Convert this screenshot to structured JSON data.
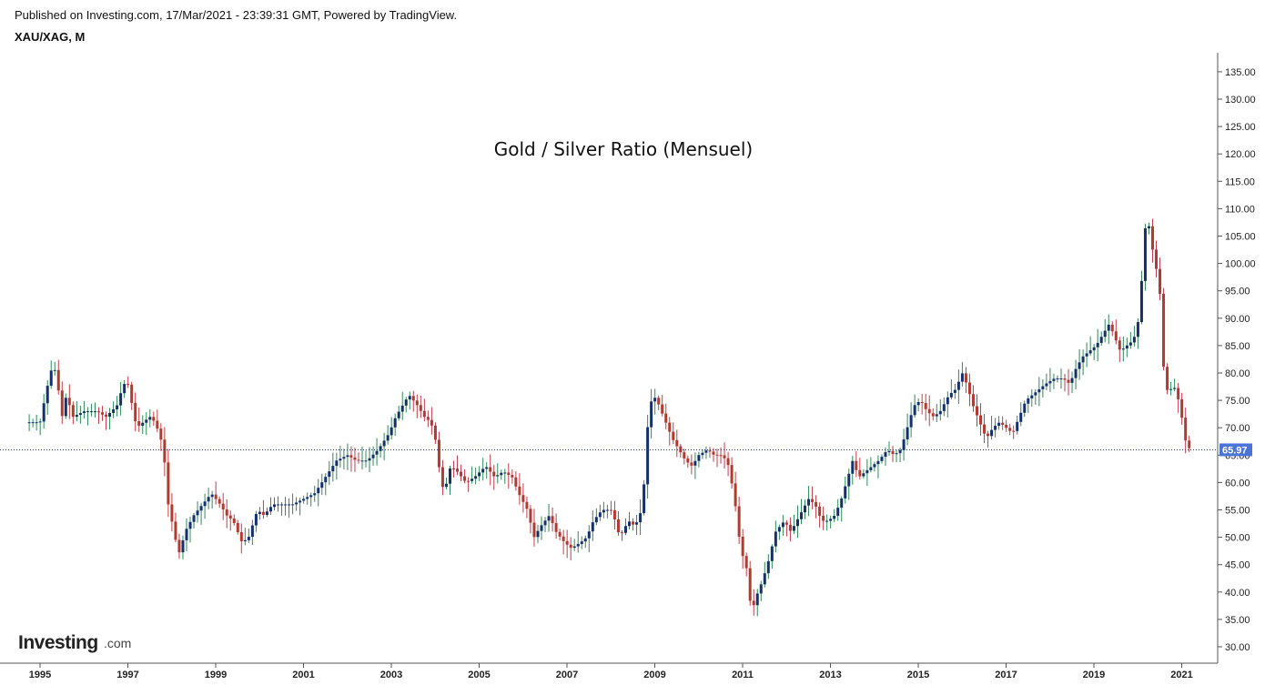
{
  "header": {
    "published": "Published on Investing.com, 17/Mar/2021 - 23:39:31 GMT, Powered by TradingView.",
    "symbol": "XAU/XAG, M"
  },
  "logo": {
    "main": "Investing",
    "tld": ".com"
  },
  "colors": {
    "up_body": "#15306e",
    "down_body": "#b33a2f",
    "up_wick": "#2e8b57",
    "down_wick": "#c83c46",
    "last_price_line": "#1f3c8a",
    "price_tag_bg": "#4a74d8",
    "axis": "#555555"
  },
  "chart_data": {
    "type": "candlestick",
    "title": "Gold / Silver Ratio (Mensuel)",
    "last_price": 65.97,
    "last_price_label": "65.97",
    "ylim": [
      27,
      138
    ],
    "y_ticks": [
      "30.00",
      "35.00",
      "40.00",
      "45.00",
      "50.00",
      "55.00",
      "60.00",
      "65.00",
      "70.00",
      "75.00",
      "80.00",
      "85.00",
      "90.00",
      "95.00",
      "100.00",
      "105.00",
      "110.00",
      "115.00",
      "120.00",
      "125.00",
      "130.00",
      "135.00"
    ],
    "x_ticks": [
      "1995",
      "1997",
      "1999",
      "2001",
      "2003",
      "2005",
      "2007",
      "2009",
      "2011",
      "2013",
      "2015",
      "2017",
      "2019",
      "2021"
    ],
    "x_range": [
      1994.6,
      2022.2
    ],
    "grid": false,
    "closes": [
      {
        "t": 1994.67,
        "v": 71
      },
      {
        "t": 1995.0,
        "v": 71
      },
      {
        "t": 1995.15,
        "v": 77
      },
      {
        "t": 1995.3,
        "v": 82
      },
      {
        "t": 1995.4,
        "v": 78
      },
      {
        "t": 1995.5,
        "v": 72
      },
      {
        "t": 1995.6,
        "v": 76
      },
      {
        "t": 1995.75,
        "v": 72
      },
      {
        "t": 1996.0,
        "v": 73
      },
      {
        "t": 1996.3,
        "v": 73
      },
      {
        "t": 1996.5,
        "v": 72
      },
      {
        "t": 1996.75,
        "v": 74
      },
      {
        "t": 1996.9,
        "v": 78
      },
      {
        "t": 1997.0,
        "v": 78
      },
      {
        "t": 1997.1,
        "v": 74
      },
      {
        "t": 1997.2,
        "v": 70
      },
      {
        "t": 1997.35,
        "v": 71
      },
      {
        "t": 1997.5,
        "v": 72
      },
      {
        "t": 1997.62,
        "v": 71
      },
      {
        "t": 1997.75,
        "v": 68
      },
      {
        "t": 1997.85,
        "v": 63
      },
      {
        "t": 1997.92,
        "v": 56
      },
      {
        "t": 1998.0,
        "v": 53
      },
      {
        "t": 1998.1,
        "v": 49
      },
      {
        "t": 1998.18,
        "v": 47
      },
      {
        "t": 1998.3,
        "v": 51
      },
      {
        "t": 1998.5,
        "v": 54
      },
      {
        "t": 1998.7,
        "v": 56
      },
      {
        "t": 1998.9,
        "v": 58
      },
      {
        "t": 1999.1,
        "v": 56
      },
      {
        "t": 1999.25,
        "v": 54
      },
      {
        "t": 1999.4,
        "v": 53
      },
      {
        "t": 1999.6,
        "v": 49
      },
      {
        "t": 1999.75,
        "v": 50
      },
      {
        "t": 1999.95,
        "v": 55
      },
      {
        "t": 2000.1,
        "v": 54
      },
      {
        "t": 2000.3,
        "v": 56
      },
      {
        "t": 2000.5,
        "v": 56
      },
      {
        "t": 2000.75,
        "v": 56
      },
      {
        "t": 2001.0,
        "v": 57
      },
      {
        "t": 2001.25,
        "v": 58
      },
      {
        "t": 2001.5,
        "v": 61
      },
      {
        "t": 2001.75,
        "v": 64
      },
      {
        "t": 2002.0,
        "v": 65
      },
      {
        "t": 2002.2,
        "v": 64
      },
      {
        "t": 2002.45,
        "v": 64
      },
      {
        "t": 2002.7,
        "v": 66
      },
      {
        "t": 2002.95,
        "v": 69
      },
      {
        "t": 2003.1,
        "v": 72
      },
      {
        "t": 2003.25,
        "v": 74
      },
      {
        "t": 2003.4,
        "v": 76
      },
      {
        "t": 2003.5,
        "v": 75
      },
      {
        "t": 2003.6,
        "v": 74
      },
      {
        "t": 2003.75,
        "v": 72
      },
      {
        "t": 2003.9,
        "v": 71
      },
      {
        "t": 2004.0,
        "v": 68
      },
      {
        "t": 2004.1,
        "v": 62
      },
      {
        "t": 2004.2,
        "v": 58
      },
      {
        "t": 2004.35,
        "v": 63
      },
      {
        "t": 2004.5,
        "v": 62
      },
      {
        "t": 2004.7,
        "v": 60
      },
      {
        "t": 2004.9,
        "v": 61
      },
      {
        "t": 2005.15,
        "v": 63
      },
      {
        "t": 2005.35,
        "v": 61
      },
      {
        "t": 2005.55,
        "v": 62
      },
      {
        "t": 2005.75,
        "v": 61
      },
      {
        "t": 2005.9,
        "v": 58
      },
      {
        "t": 2006.1,
        "v": 55
      },
      {
        "t": 2006.25,
        "v": 50
      },
      {
        "t": 2006.4,
        "v": 52
      },
      {
        "t": 2006.6,
        "v": 54
      },
      {
        "t": 2006.75,
        "v": 51
      },
      {
        "t": 2006.95,
        "v": 49
      },
      {
        "t": 2007.1,
        "v": 48
      },
      {
        "t": 2007.3,
        "v": 49
      },
      {
        "t": 2007.45,
        "v": 50
      },
      {
        "t": 2007.6,
        "v": 53
      },
      {
        "t": 2007.8,
        "v": 55
      },
      {
        "t": 2008.0,
        "v": 55
      },
      {
        "t": 2008.1,
        "v": 53
      },
      {
        "t": 2008.2,
        "v": 50
      },
      {
        "t": 2008.4,
        "v": 53
      },
      {
        "t": 2008.55,
        "v": 52
      },
      {
        "t": 2008.7,
        "v": 55
      },
      {
        "t": 2008.78,
        "v": 62
      },
      {
        "t": 2008.85,
        "v": 72
      },
      {
        "t": 2008.95,
        "v": 76
      },
      {
        "t": 2009.05,
        "v": 75
      },
      {
        "t": 2009.2,
        "v": 72
      },
      {
        "t": 2009.4,
        "v": 68
      },
      {
        "t": 2009.55,
        "v": 66
      },
      {
        "t": 2009.7,
        "v": 64
      },
      {
        "t": 2009.85,
        "v": 63
      },
      {
        "t": 2010.0,
        "v": 65
      },
      {
        "t": 2010.2,
        "v": 66
      },
      {
        "t": 2010.35,
        "v": 65
      },
      {
        "t": 2010.5,
        "v": 65
      },
      {
        "t": 2010.65,
        "v": 64
      },
      {
        "t": 2010.75,
        "v": 60
      },
      {
        "t": 2010.85,
        "v": 55
      },
      {
        "t": 2010.95,
        "v": 48
      },
      {
        "t": 2011.1,
        "v": 44
      },
      {
        "t": 2011.2,
        "v": 36
      },
      {
        "t": 2011.3,
        "v": 39
      },
      {
        "t": 2011.45,
        "v": 42
      },
      {
        "t": 2011.6,
        "v": 46
      },
      {
        "t": 2011.75,
        "v": 51
      },
      {
        "t": 2011.95,
        "v": 53
      },
      {
        "t": 2012.1,
        "v": 51
      },
      {
        "t": 2012.3,
        "v": 54
      },
      {
        "t": 2012.5,
        "v": 57
      },
      {
        "t": 2012.65,
        "v": 56
      },
      {
        "t": 2012.8,
        "v": 53
      },
      {
        "t": 2012.95,
        "v": 53
      },
      {
        "t": 2013.1,
        "v": 54
      },
      {
        "t": 2013.25,
        "v": 57
      },
      {
        "t": 2013.4,
        "v": 61
      },
      {
        "t": 2013.5,
        "v": 64
      },
      {
        "t": 2013.65,
        "v": 61
      },
      {
        "t": 2013.8,
        "v": 62
      },
      {
        "t": 2013.95,
        "v": 63
      },
      {
        "t": 2014.1,
        "v": 64
      },
      {
        "t": 2014.3,
        "v": 66
      },
      {
        "t": 2014.45,
        "v": 65
      },
      {
        "t": 2014.6,
        "v": 66
      },
      {
        "t": 2014.75,
        "v": 70
      },
      {
        "t": 2014.9,
        "v": 74
      },
      {
        "t": 2015.05,
        "v": 75
      },
      {
        "t": 2015.2,
        "v": 73
      },
      {
        "t": 2015.35,
        "v": 72
      },
      {
        "t": 2015.5,
        "v": 73
      },
      {
        "t": 2015.7,
        "v": 76
      },
      {
        "t": 2015.85,
        "v": 77
      },
      {
        "t": 2016.0,
        "v": 80
      },
      {
        "t": 2016.1,
        "v": 78
      },
      {
        "t": 2016.25,
        "v": 74
      },
      {
        "t": 2016.4,
        "v": 71
      },
      {
        "t": 2016.55,
        "v": 68
      },
      {
        "t": 2016.7,
        "v": 70
      },
      {
        "t": 2016.85,
        "v": 71
      },
      {
        "t": 2017.0,
        "v": 70
      },
      {
        "t": 2017.15,
        "v": 69
      },
      {
        "t": 2017.3,
        "v": 72
      },
      {
        "t": 2017.45,
        "v": 75
      },
      {
        "t": 2017.6,
        "v": 76
      },
      {
        "t": 2017.75,
        "v": 77
      },
      {
        "t": 2017.9,
        "v": 78
      },
      {
        "t": 2018.1,
        "v": 79
      },
      {
        "t": 2018.3,
        "v": 79
      },
      {
        "t": 2018.45,
        "v": 78
      },
      {
        "t": 2018.6,
        "v": 81
      },
      {
        "t": 2018.75,
        "v": 83
      },
      {
        "t": 2018.9,
        "v": 84
      },
      {
        "t": 2019.05,
        "v": 85
      },
      {
        "t": 2019.2,
        "v": 87
      },
      {
        "t": 2019.35,
        "v": 89
      },
      {
        "t": 2019.5,
        "v": 86
      },
      {
        "t": 2019.6,
        "v": 84
      },
      {
        "t": 2019.75,
        "v": 85
      },
      {
        "t": 2019.9,
        "v": 86
      },
      {
        "t": 2020.0,
        "v": 89
      },
      {
        "t": 2020.1,
        "v": 98
      },
      {
        "t": 2020.2,
        "v": 110
      },
      {
        "t": 2020.3,
        "v": 104
      },
      {
        "t": 2020.4,
        "v": 100
      },
      {
        "t": 2020.5,
        "v": 95
      },
      {
        "t": 2020.6,
        "v": 79
      },
      {
        "t": 2020.7,
        "v": 76
      },
      {
        "t": 2020.8,
        "v": 78
      },
      {
        "t": 2020.9,
        "v": 76
      },
      {
        "t": 2021.0,
        "v": 72
      },
      {
        "t": 2021.1,
        "v": 67
      },
      {
        "t": 2021.2,
        "v": 65.97
      }
    ]
  }
}
